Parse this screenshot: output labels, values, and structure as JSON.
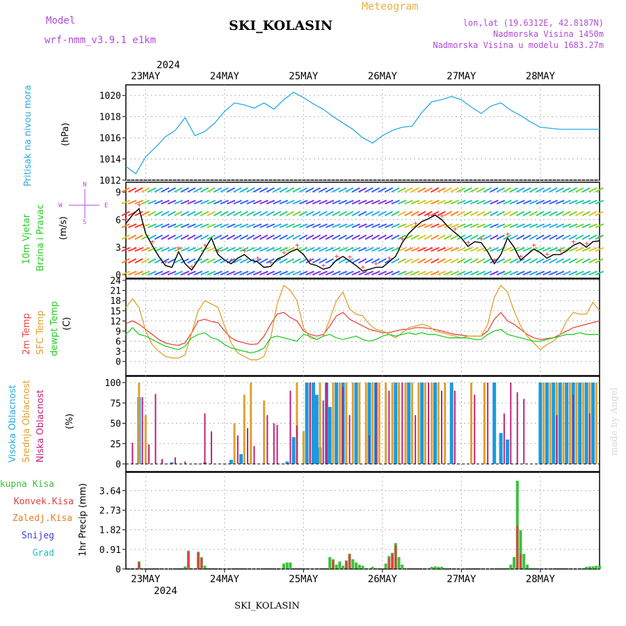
{
  "header": {
    "model_label": "Model",
    "model_name": "wrf-nmm_v3.9.1 e1km",
    "station": "SKI_KOLASIN",
    "product": "Meteogram",
    "lonlat": "lon,lat (19.6312E, 42.8187N)",
    "elevation": "Nadmorska Visina 1450m",
    "model_elevation": "Nadmorska Visina u modelu 1683.27m",
    "footer_station": "SKI_KOLASIN",
    "credit": "made by Angel"
  },
  "colors": {
    "pressure": "#29a8e0",
    "temp2m": "#e8463a",
    "sfc_temp": "#e0a030",
    "dewpoint": "#22cc22",
    "high_cloud": "#1a9ae0",
    "mid_cloud": "#e0a030",
    "low_cloud": "#c0207a",
    "wind_speed": "#000000",
    "wind_dots": "#ff3030",
    "precip_total": "#3fbf3f",
    "precip_conv": "#e04040",
    "precip_frz": "#e08030",
    "snow": "#4040d0",
    "graupel": "#20c0c0",
    "grid": "#b0b0b0"
  },
  "time_axis": {
    "year": "2024",
    "labels": [
      "23MAY",
      "24MAY",
      "25MAY",
      "26MAY",
      "27MAY",
      "28MAY"
    ],
    "hours_per_day": 24,
    "range_hours": [
      -6,
      138
    ]
  },
  "compass": {
    "n": "N",
    "s": "S",
    "e": "E",
    "w": "W"
  },
  "chart_data": [
    {
      "id": "pressure",
      "type": "line",
      "title": "Pritisak na nivou mora",
      "ylabel": "(hPa)",
      "ylim": [
        1012,
        1021
      ],
      "yticks": [
        1012,
        1014,
        1016,
        1018,
        1020
      ],
      "series": [
        {
          "name": "",
          "x": [
            -6,
            -3,
            0,
            3,
            6,
            9,
            12,
            15,
            18,
            21,
            24,
            27,
            30,
            33,
            36,
            39,
            42,
            45,
            48,
            51,
            54,
            57,
            60,
            63,
            66,
            69,
            72,
            75,
            78,
            81,
            84,
            87,
            90,
            93,
            96,
            99,
            102,
            105,
            108,
            111,
            114,
            117,
            120,
            123,
            126,
            129,
            132,
            135,
            138
          ],
          "values": [
            1013.3,
            1012.6,
            1014.2,
            1015.1,
            1016.1,
            1016.7,
            1017.9,
            1016.2,
            1016.6,
            1017.4,
            1018.5,
            1019.3,
            1019.1,
            1018.8,
            1019.3,
            1018.7,
            1019.6,
            1020.3,
            1019.8,
            1019.2,
            1018.7,
            1018.0,
            1017.4,
            1016.8,
            1016.0,
            1015.5,
            1016.2,
            1016.7,
            1017.0,
            1017.1,
            1018.4,
            1019.4,
            1019.6,
            1019.9,
            1019.6,
            1018.9,
            1018.3,
            1019.0,
            1019.3,
            1018.6,
            1018.1,
            1017.5,
            1017.0,
            1016.9,
            1016.8,
            1016.8,
            1016.8,
            1016.8,
            1016.8
          ]
        }
      ]
    },
    {
      "id": "wind",
      "type": "line",
      "title": "10m Vjetar",
      "title2": "Brzina i Pravac",
      "ylabel": "(m/s)",
      "ylim": [
        0,
        10
      ],
      "yticks": [
        0,
        3,
        6,
        9
      ],
      "series": [
        {
          "name": "",
          "x": [
            -6,
            -4,
            -2,
            0,
            2,
            4,
            6,
            8,
            10,
            12,
            14,
            16,
            18,
            20,
            22,
            24,
            26,
            28,
            30,
            32,
            34,
            36,
            38,
            40,
            42,
            44,
            46,
            48,
            50,
            52,
            54,
            56,
            58,
            60,
            62,
            64,
            66,
            68,
            70,
            72,
            74,
            76,
            78,
            80,
            82,
            84,
            86,
            88,
            90,
            92,
            94,
            96,
            98,
            100,
            102,
            104,
            106,
            108,
            110,
            112,
            114,
            116,
            118,
            120,
            122,
            124,
            126,
            128,
            130,
            132,
            134,
            136,
            138
          ],
          "values": [
            5.6,
            6.5,
            7.2,
            4.5,
            3.2,
            2.0,
            1.0,
            0.8,
            2.5,
            1.2,
            0.5,
            1.6,
            2.8,
            4.0,
            2.2,
            1.6,
            1.2,
            1.8,
            2.2,
            1.6,
            1.4,
            0.8,
            0.9,
            1.7,
            2.0,
            2.5,
            2.8,
            2.2,
            1.2,
            1.0,
            0.6,
            0.8,
            1.6,
            2.0,
            1.5,
            1.0,
            0.4,
            0.6,
            0.8,
            0.8,
            1.4,
            2.0,
            3.5,
            4.5,
            5.2,
            5.8,
            6.1,
            6.5,
            6.0,
            5.2,
            4.6,
            4.0,
            3.1,
            3.6,
            3.5,
            2.5,
            1.2,
            2.2,
            4.0,
            3.0,
            1.6,
            2.2,
            2.8,
            2.4,
            1.8,
            2.2,
            2.2,
            2.6,
            3.2,
            3.5,
            3.0,
            3.6,
            3.7
          ]
        }
      ]
    },
    {
      "id": "temperature",
      "type": "line",
      "title": "2m Temp",
      "title2": "SFC Temp",
      "title3": "dewpt Temp",
      "ylabel": "(C)",
      "ylim": [
        -1.5,
        24
      ],
      "yticks": [
        0,
        3,
        6,
        9,
        12,
        15,
        18,
        21,
        24
      ],
      "x": [
        -6,
        -4,
        -2,
        0,
        2,
        4,
        6,
        8,
        10,
        12,
        14,
        16,
        18,
        20,
        22,
        24,
        26,
        28,
        30,
        32,
        34,
        36,
        38,
        40,
        42,
        44,
        46,
        48,
        50,
        52,
        54,
        56,
        58,
        60,
        62,
        64,
        66,
        68,
        70,
        72,
        74,
        76,
        78,
        80,
        82,
        84,
        86,
        88,
        90,
        92,
        94,
        96,
        98,
        100,
        102,
        104,
        106,
        108,
        110,
        112,
        114,
        116,
        118,
        120,
        122,
        124,
        126,
        128,
        130,
        132,
        134,
        136,
        138
      ],
      "series": [
        {
          "name": "2m Temp",
          "values": [
            11.2,
            12.0,
            11.0,
            9.5,
            8.0,
            6.5,
            5.5,
            5.0,
            4.8,
            5.5,
            8.5,
            12.0,
            12.5,
            11.8,
            11.5,
            9.0,
            7.0,
            6.0,
            5.5,
            5.0,
            5.2,
            7.5,
            11.0,
            14.0,
            14.5,
            13.0,
            12.0,
            9.0,
            8.0,
            7.5,
            8.0,
            10.5,
            13.5,
            14.5,
            12.5,
            11.5,
            10.5,
            9.5,
            9.0,
            8.5,
            8.5,
            9.0,
            9.5,
            9.5,
            10.0,
            10.0,
            9.8,
            9.5,
            9.0,
            8.5,
            8.0,
            7.8,
            7.5,
            7.5,
            7.5,
            9.0,
            12.5,
            14.5,
            12.0,
            11.0,
            9.5,
            8.0,
            7.0,
            6.5,
            6.8,
            7.0,
            8.0,
            9.0,
            10.0,
            10.5,
            11.0,
            11.5,
            12.0
          ]
        },
        {
          "name": "SFC Temp",
          "values": [
            16.0,
            18.5,
            16.0,
            9.0,
            5.0,
            3.0,
            1.5,
            1.0,
            1.0,
            2.0,
            8.5,
            15.0,
            18.0,
            17.0,
            16.0,
            10.5,
            5.5,
            2.5,
            1.5,
            0.5,
            0.5,
            1.5,
            7.0,
            17.0,
            22.5,
            21.0,
            18.0,
            10.0,
            7.0,
            6.5,
            7.5,
            12.5,
            18.0,
            20.5,
            15.5,
            14.0,
            13.5,
            11.0,
            9.5,
            9.0,
            8.0,
            7.0,
            8.5,
            10.0,
            10.5,
            11.0,
            10.5,
            9.0,
            8.5,
            8.0,
            7.5,
            7.0,
            7.5,
            7.5,
            7.5,
            11.0,
            19.0,
            22.5,
            20.5,
            15.0,
            10.5,
            7.5,
            5.5,
            3.5,
            5.0,
            6.0,
            8.0,
            12.0,
            14.5,
            14.0,
            14.0,
            17.5,
            15.0
          ]
        },
        {
          "name": "dewpt Temp",
          "values": [
            8.0,
            10.0,
            8.0,
            7.5,
            6.5,
            5.5,
            4.5,
            4.0,
            3.5,
            4.5,
            7.0,
            8.0,
            8.5,
            7.0,
            6.5,
            5.0,
            4.0,
            3.5,
            3.0,
            2.5,
            3.0,
            4.0,
            7.0,
            7.5,
            7.0,
            6.5,
            6.0,
            8.0,
            7.5,
            6.5,
            7.5,
            8.0,
            7.0,
            6.5,
            7.0,
            7.5,
            6.5,
            6.0,
            6.5,
            7.5,
            8.0,
            7.5,
            8.0,
            8.5,
            8.0,
            8.5,
            8.0,
            8.0,
            7.5,
            7.0,
            7.0,
            7.0,
            7.0,
            6.5,
            6.5,
            8.0,
            9.0,
            9.5,
            8.0,
            7.5,
            7.0,
            6.5,
            6.0,
            6.0,
            6.5,
            7.0,
            7.5,
            8.0,
            8.0,
            8.5,
            8.0,
            8.0,
            8.0
          ]
        }
      ]
    },
    {
      "id": "clouds",
      "type": "bar",
      "title": "Visoka Oblacnost",
      "title2": "Srednja Oblacnost",
      "title3": "Niska Oblacnost",
      "ylabel": "(%)",
      "ylim": [
        0,
        100
      ],
      "yticks": [
        0,
        25,
        50,
        75,
        100
      ],
      "series": [
        {
          "name": "Visoka Oblacnost",
          "x": [
            -2,
            8,
            18,
            26,
            29,
            43,
            45,
            49,
            51,
            52,
            53,
            55,
            56,
            58,
            60,
            64,
            68,
            70,
            76,
            80,
            84,
            88,
            93,
            106,
            108,
            110,
            120,
            122,
            124,
            126,
            128,
            130,
            132,
            134,
            136
          ],
          "values": [
            82,
            2,
            2,
            5,
            12,
            3,
            33,
            100,
            100,
            85,
            20,
            100,
            70,
            100,
            100,
            100,
            100,
            100,
            100,
            100,
            100,
            100,
            100,
            100,
            38,
            30,
            100,
            100,
            100,
            100,
            100,
            100,
            100,
            100,
            100
          ]
        },
        {
          "name": "Srednja Oblacnost",
          "x": [
            -2,
            0,
            27,
            30,
            32,
            36,
            46,
            48,
            50,
            53,
            57,
            59,
            61,
            63,
            65,
            67,
            69,
            71,
            73,
            75,
            77,
            79,
            81,
            83,
            85,
            87,
            89,
            91,
            99,
            103,
            121,
            123,
            125,
            127,
            129,
            131,
            133,
            135,
            137
          ],
          "values": [
            100,
            60,
            50,
            85,
            100,
            78,
            100,
            40,
            100,
            100,
            100,
            100,
            100,
            100,
            100,
            100,
            100,
            100,
            100,
            100,
            100,
            100,
            100,
            100,
            100,
            100,
            100,
            100,
            100,
            100,
            100,
            100,
            100,
            100,
            100,
            100,
            100,
            100,
            100
          ]
        },
        {
          "name": "Niska Oblacnost",
          "x": [
            -4,
            -1,
            1,
            3,
            5,
            9,
            12,
            18,
            20,
            28,
            31,
            33,
            37,
            39,
            40,
            44,
            46,
            50,
            54,
            55,
            60,
            62,
            68,
            70,
            74,
            78,
            82,
            86,
            90,
            94,
            100,
            104,
            109,
            111,
            113,
            115,
            125,
            130,
            135
          ],
          "values": [
            26,
            82,
            24,
            86,
            6,
            8,
            3,
            62,
            40,
            35,
            44,
            22,
            60,
            50,
            48,
            90,
            47,
            100,
            78,
            100,
            95,
            60,
            35,
            100,
            90,
            100,
            60,
            100,
            90,
            90,
            85,
            100,
            62,
            100,
            88,
            80,
            60,
            85,
            62
          ]
        }
      ]
    },
    {
      "id": "precip",
      "type": "bar",
      "title": "Ukupna Kisa",
      "title2": "Konvek.Kisa",
      "title3": "Zaledj.Kisa",
      "title4": "Snijeg",
      "title5": "Grad",
      "ylabel": "1hr Precip (mm)",
      "ylim": [
        0,
        4.2
      ],
      "yticks": [
        0,
        0.91,
        1.82,
        2.73,
        3.64
      ],
      "series": [
        {
          "name": "Ukupna Kisa",
          "x": [
            -2,
            12,
            13,
            16,
            17,
            18,
            42,
            43,
            44,
            56,
            57,
            58,
            59,
            60,
            61,
            62,
            63,
            64,
            65,
            66,
            69,
            73,
            74,
            75,
            76,
            77,
            78,
            87,
            88,
            89,
            90,
            111,
            112,
            113,
            114,
            115,
            116,
            134,
            135,
            136,
            137,
            138
          ],
          "values": [
            0.35,
            0.12,
            0.85,
            0.8,
            0.55,
            0.15,
            0.25,
            0.3,
            0.3,
            0.55,
            0.45,
            0.2,
            0.35,
            0.15,
            0.4,
            0.7,
            0.45,
            0.3,
            0.2,
            0.15,
            0.1,
            0.25,
            0.6,
            0.75,
            1.2,
            0.55,
            0.2,
            0.1,
            0.12,
            0.1,
            0.1,
            0.2,
            0.55,
            4.1,
            1.8,
            0.7,
            0.2,
            0.1,
            0.12,
            0.12,
            0.15,
            0.15
          ]
        },
        {
          "name": "Konvek.Kisa",
          "x": [
            -2,
            13,
            16,
            17,
            57,
            61,
            62,
            74,
            75,
            76,
            113,
            114
          ],
          "values": [
            0.3,
            0.8,
            0.75,
            0.5,
            0.4,
            0.35,
            0.7,
            0.5,
            0.7,
            1.1,
            2.0,
            0.7
          ]
        }
      ]
    }
  ]
}
